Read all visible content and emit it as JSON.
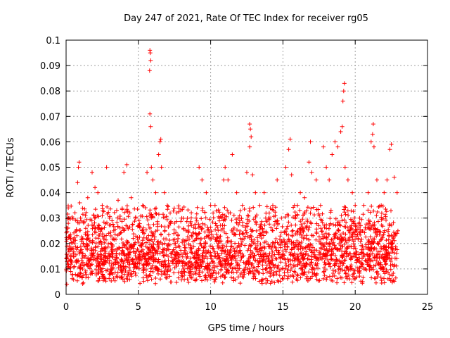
{
  "chart_data": {
    "type": "scatter",
    "title": "Day 247 of 2021, Rate Of TEC Index for receiver rg05",
    "xlabel": "GPS time / hours",
    "ylabel": "ROTI / TECUs",
    "xlim": [
      0,
      25
    ],
    "ylim": [
      0,
      0.1
    ],
    "xticks": [
      0,
      5,
      10,
      15,
      20,
      25
    ],
    "yticks": [
      0,
      0.01,
      0.02,
      0.03,
      0.04,
      0.05,
      0.06,
      0.07,
      0.08,
      0.09,
      0.1
    ],
    "grid": true,
    "marker": "plus",
    "color": "#ff0000",
    "series": [
      {
        "points": [
          [
            0.05,
            0.004
          ],
          [
            0.1,
            0.026
          ],
          [
            0.15,
            0.034
          ],
          [
            0.2,
            0.03
          ],
          [
            0.3,
            0.022
          ],
          [
            0.4,
            0.018
          ],
          [
            0.5,
            0.016
          ],
          [
            0.8,
            0.044
          ],
          [
            0.85,
            0.05
          ],
          [
            0.9,
            0.052
          ],
          [
            0.95,
            0.036
          ],
          [
            1.0,
            0.03
          ],
          [
            1.2,
            0.02
          ],
          [
            1.5,
            0.038
          ],
          [
            1.8,
            0.048
          ],
          [
            2.0,
            0.042
          ],
          [
            2.2,
            0.04
          ],
          [
            2.5,
            0.035
          ],
          [
            2.8,
            0.05
          ],
          [
            3.0,
            0.03
          ],
          [
            3.3,
            0.025
          ],
          [
            3.6,
            0.037
          ],
          [
            4.0,
            0.048
          ],
          [
            4.2,
            0.051
          ],
          [
            4.5,
            0.038
          ],
          [
            4.8,
            0.03
          ],
          [
            5.0,
            0.027
          ],
          [
            5.3,
            0.035
          ],
          [
            5.6,
            0.048
          ],
          [
            5.8,
            0.096
          ],
          [
            5.82,
            0.095
          ],
          [
            5.85,
            0.092
          ],
          [
            5.78,
            0.088
          ],
          [
            5.8,
            0.071
          ],
          [
            5.85,
            0.066
          ],
          [
            5.9,
            0.05
          ],
          [
            6.0,
            0.045
          ],
          [
            6.2,
            0.04
          ],
          [
            6.4,
            0.055
          ],
          [
            6.5,
            0.06
          ],
          [
            6.55,
            0.061
          ],
          [
            6.6,
            0.05
          ],
          [
            6.8,
            0.04
          ],
          [
            7.0,
            0.035
          ],
          [
            7.2,
            0.032
          ],
          [
            7.5,
            0.028
          ],
          [
            8.0,
            0.03
          ],
          [
            8.3,
            0.025
          ],
          [
            8.6,
            0.028
          ],
          [
            9.0,
            0.03
          ],
          [
            9.2,
            0.05
          ],
          [
            9.4,
            0.045
          ],
          [
            9.7,
            0.04
          ],
          [
            10.0,
            0.035
          ],
          [
            10.3,
            0.035
          ],
          [
            10.6,
            0.03
          ],
          [
            10.9,
            0.045
          ],
          [
            11.0,
            0.05
          ],
          [
            11.2,
            0.045
          ],
          [
            11.5,
            0.055
          ],
          [
            11.8,
            0.04
          ],
          [
            12.2,
            0.035
          ],
          [
            12.5,
            0.048
          ],
          [
            12.7,
            0.067
          ],
          [
            12.75,
            0.065
          ],
          [
            12.8,
            0.062
          ],
          [
            12.7,
            0.058
          ],
          [
            12.9,
            0.047
          ],
          [
            13.1,
            0.04
          ],
          [
            13.4,
            0.035
          ],
          [
            13.7,
            0.04
          ],
          [
            14.0,
            0.03
          ],
          [
            14.3,
            0.035
          ],
          [
            14.6,
            0.045
          ],
          [
            14.9,
            0.03
          ],
          [
            15.2,
            0.05
          ],
          [
            15.4,
            0.057
          ],
          [
            15.5,
            0.061
          ],
          [
            15.6,
            0.047
          ],
          [
            15.8,
            0.035
          ],
          [
            16.0,
            0.035
          ],
          [
            16.2,
            0.04
          ],
          [
            16.5,
            0.038
          ],
          [
            16.8,
            0.052
          ],
          [
            16.9,
            0.06
          ],
          [
            17.0,
            0.048
          ],
          [
            17.3,
            0.045
          ],
          [
            17.6,
            0.035
          ],
          [
            17.8,
            0.058
          ],
          [
            18.0,
            0.05
          ],
          [
            18.2,
            0.045
          ],
          [
            18.4,
            0.055
          ],
          [
            18.6,
            0.06
          ],
          [
            18.8,
            0.058
          ],
          [
            19.0,
            0.064
          ],
          [
            19.1,
            0.066
          ],
          [
            19.15,
            0.076
          ],
          [
            19.2,
            0.08
          ],
          [
            19.25,
            0.083
          ],
          [
            19.3,
            0.05
          ],
          [
            19.5,
            0.045
          ],
          [
            19.8,
            0.04
          ],
          [
            20.0,
            0.035
          ],
          [
            20.3,
            0.03
          ],
          [
            20.6,
            0.035
          ],
          [
            20.9,
            0.04
          ],
          [
            21.1,
            0.06
          ],
          [
            21.2,
            0.063
          ],
          [
            21.25,
            0.067
          ],
          [
            21.3,
            0.058
          ],
          [
            21.5,
            0.045
          ],
          [
            21.8,
            0.035
          ],
          [
            22.0,
            0.04
          ],
          [
            22.2,
            0.045
          ],
          [
            22.4,
            0.057
          ],
          [
            22.5,
            0.059
          ],
          [
            22.7,
            0.046
          ],
          [
            22.9,
            0.04
          ],
          [
            22.95,
            0.025
          ]
        ]
      }
    ],
    "bulk_band": {
      "x_range": [
        0,
        22.9
      ],
      "y_floor": 0.004,
      "y_base_mean": 0.013,
      "y_spread": 0.02
    }
  }
}
